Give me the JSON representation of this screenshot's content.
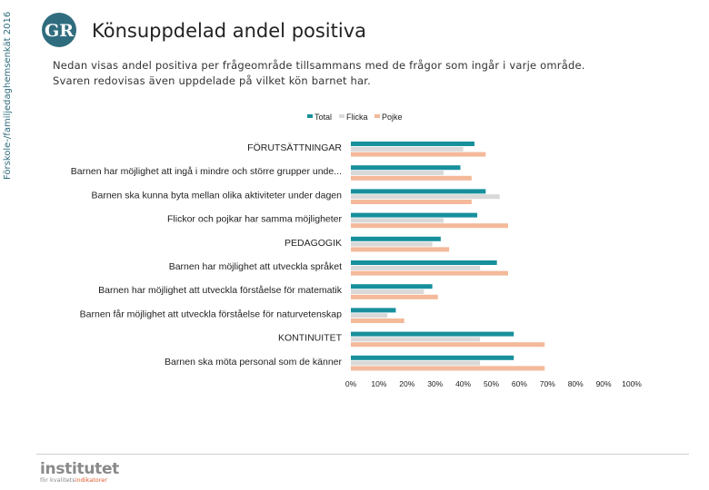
{
  "side_label": "Förskole-/familjedaghemsenkät 2016",
  "logo": {
    "text": "GR",
    "color": "#2f6d7e"
  },
  "title": "Könsuppdelad andel positiva",
  "description": [
    "Nedan visas andel positiva per frågeområde tillsammans med de frågor som ingår i varje område.",
    "Svaren redovisas även uppdelade på vilket kön barnet har."
  ],
  "chart_data": {
    "type": "bar",
    "orientation": "horizontal",
    "categories": [
      "FÖRUTSÄTTNINGAR",
      "Barnen har möjlighet att ingå i mindre och större grupper unde...",
      "Barnen ska kunna byta mellan olika aktiviteter under dagen",
      "Flickor och pojkar har samma möjligheter",
      "PEDAGOGIK",
      "Barnen har möjlighet att utveckla språket",
      "Barnen har möjlighet att utveckla förståelse för matematik",
      "Barnen får möjlighet att utveckla förståelse för naturvetenskap",
      "KONTINUITET",
      "Barnen ska möta personal som de känner"
    ],
    "series": [
      {
        "name": "Total",
        "color": "#17909c",
        "values": [
          44,
          39,
          48,
          45,
          32,
          52,
          29,
          16,
          58,
          58
        ]
      },
      {
        "name": "Flicka",
        "color": "#d9d9d9",
        "values": [
          40,
          33,
          53,
          33,
          29,
          46,
          26,
          13,
          46,
          46
        ]
      },
      {
        "name": "Pojke",
        "color": "#f4b99a",
        "values": [
          48,
          43,
          43,
          56,
          35,
          56,
          31,
          19,
          69,
          69
        ]
      }
    ],
    "xlim": [
      0,
      100
    ],
    "xticks": [
      "0%",
      "10%",
      "20%",
      "30%",
      "40%",
      "50%",
      "60%",
      "70%",
      "80%",
      "90%",
      "100%"
    ],
    "legend_position": "top-center",
    "grid": false
  },
  "brand": {
    "name": "institutet",
    "sub_prefix": "för kvalitets",
    "sub_accent": "indikatorer"
  }
}
